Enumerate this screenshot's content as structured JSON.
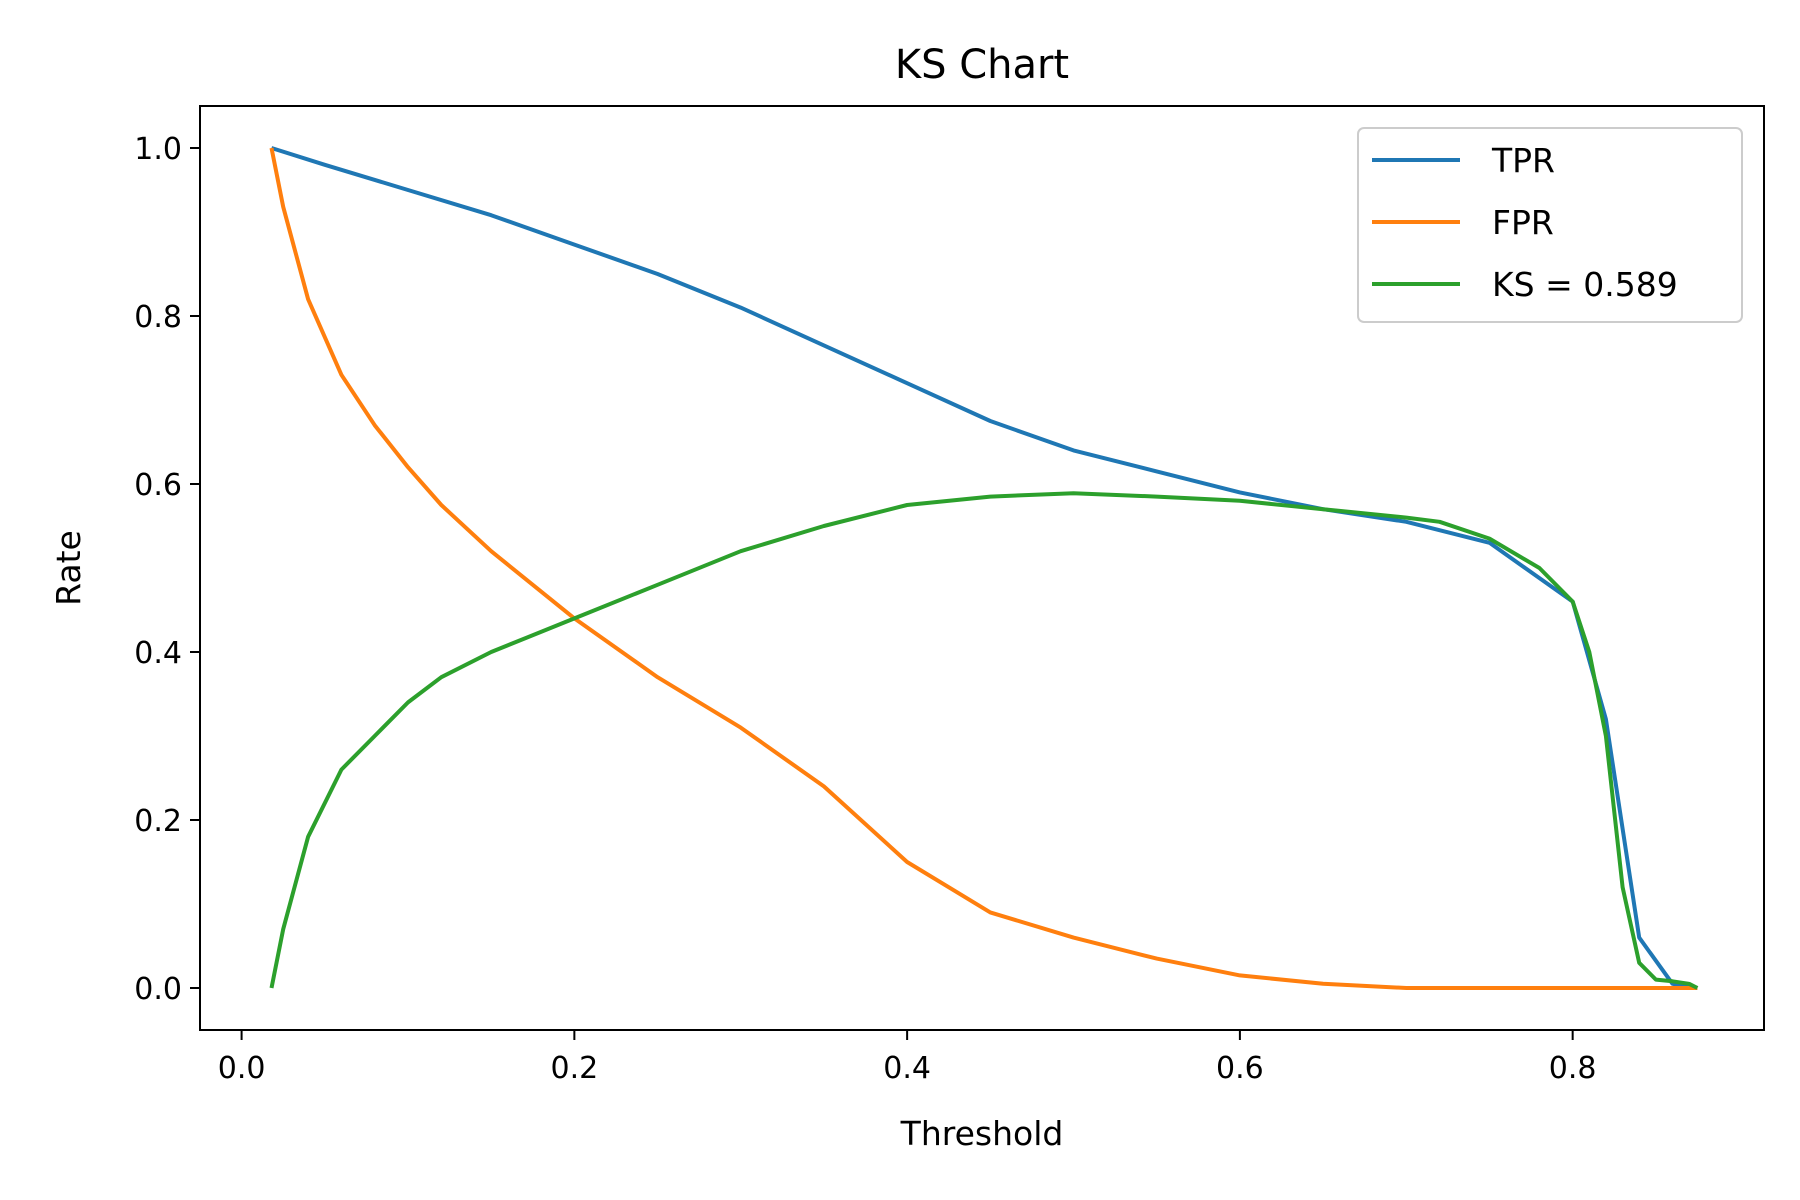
{
  "chart_data": {
    "type": "line",
    "title": "KS Chart",
    "xlabel": "Threshold",
    "ylabel": "Rate",
    "xlim": [
      -0.025,
      0.915
    ],
    "ylim": [
      -0.05,
      1.05
    ],
    "xticks": [
      "0.0",
      "0.2",
      "0.4",
      "0.6",
      "0.8"
    ],
    "yticks": [
      "0.0",
      "0.2",
      "0.4",
      "0.6",
      "0.8",
      "1.0"
    ],
    "grid": false,
    "legend_position": "top-right",
    "series": [
      {
        "name": "TPR",
        "color": "#1f77b4",
        "x": [
          0.018,
          0.05,
          0.1,
          0.15,
          0.2,
          0.25,
          0.3,
          0.35,
          0.4,
          0.45,
          0.5,
          0.55,
          0.6,
          0.65,
          0.7,
          0.75,
          0.8,
          0.82,
          0.84,
          0.86,
          0.875
        ],
        "y": [
          1.0,
          0.98,
          0.95,
          0.92,
          0.885,
          0.85,
          0.81,
          0.765,
          0.72,
          0.675,
          0.64,
          0.615,
          0.59,
          0.57,
          0.555,
          0.53,
          0.46,
          0.32,
          0.06,
          0.005,
          0.0
        ]
      },
      {
        "name": "FPR",
        "color": "#ff7f0e",
        "x": [
          0.018,
          0.025,
          0.04,
          0.06,
          0.08,
          0.1,
          0.12,
          0.15,
          0.2,
          0.25,
          0.3,
          0.35,
          0.4,
          0.45,
          0.5,
          0.55,
          0.6,
          0.65,
          0.7,
          0.75,
          0.8,
          0.875
        ],
        "y": [
          1.0,
          0.93,
          0.82,
          0.73,
          0.67,
          0.62,
          0.575,
          0.52,
          0.44,
          0.37,
          0.31,
          0.24,
          0.15,
          0.09,
          0.06,
          0.035,
          0.015,
          0.005,
          0.0,
          0.0,
          0.0,
          0.0
        ]
      },
      {
        "name": "KS = 0.589",
        "color": "#2ca02c",
        "x": [
          0.018,
          0.025,
          0.04,
          0.06,
          0.08,
          0.1,
          0.12,
          0.15,
          0.2,
          0.25,
          0.3,
          0.35,
          0.4,
          0.45,
          0.5,
          0.55,
          0.6,
          0.65,
          0.7,
          0.72,
          0.75,
          0.78,
          0.8,
          0.81,
          0.82,
          0.83,
          0.84,
          0.85,
          0.86,
          0.87,
          0.875
        ],
        "y": [
          0.0,
          0.07,
          0.18,
          0.26,
          0.3,
          0.34,
          0.37,
          0.4,
          0.44,
          0.48,
          0.52,
          0.55,
          0.575,
          0.585,
          0.589,
          0.585,
          0.58,
          0.57,
          0.56,
          0.555,
          0.535,
          0.5,
          0.46,
          0.4,
          0.3,
          0.12,
          0.03,
          0.01,
          0.008,
          0.005,
          0.0
        ]
      }
    ]
  }
}
